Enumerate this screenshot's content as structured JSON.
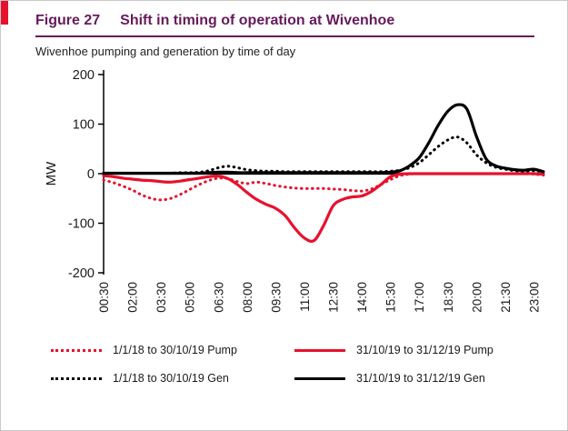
{
  "page": {
    "figure_label": "Figure 27",
    "title": "Shift in timing of operation at Wivenhoe",
    "subtitle": "Wivenhoe pumping and generation by time of day"
  },
  "colors": {
    "accent_purple": "#671a5c",
    "series_red": "#e8112d",
    "series_black": "#000000"
  },
  "chart_data": {
    "type": "line",
    "title": "Wivenhoe pumping and generation by time of day",
    "xlabel": "",
    "ylabel": "MW",
    "ylim": [
      -200,
      200
    ],
    "yticks": [
      -200,
      -100,
      0,
      100,
      200
    ],
    "grid": false,
    "legend_position": "bottom",
    "x": [
      "00:30",
      "01:00",
      "01:30",
      "02:00",
      "02:30",
      "03:00",
      "03:30",
      "04:00",
      "04:30",
      "05:00",
      "05:30",
      "06:00",
      "06:30",
      "07:00",
      "07:30",
      "08:00",
      "08:30",
      "09:00",
      "09:30",
      "10:00",
      "10:30",
      "11:00",
      "11:30",
      "12:00",
      "12:30",
      "13:00",
      "13:30",
      "14:00",
      "14:30",
      "15:00",
      "15:30",
      "16:00",
      "16:30",
      "17:00",
      "17:30",
      "18:00",
      "18:30",
      "19:00",
      "19:30",
      "20:00",
      "20:30",
      "21:00",
      "21:30",
      "22:00",
      "22:30",
      "23:00",
      "23:30"
    ],
    "xtick_labels": [
      "00:30",
      "02:00",
      "03:30",
      "05:00",
      "06:30",
      "08:00",
      "09:30",
      "11:00",
      "12:30",
      "14:00",
      "15:30",
      "17:00",
      "18:30",
      "20:00",
      "21:30",
      "23:00"
    ],
    "series": [
      {
        "name": "1/1/18 to 30/10/19 Pump",
        "color": "#e8112d",
        "style": "dotted",
        "values": [
          -13,
          -18,
          -25,
          -33,
          -43,
          -50,
          -53,
          -50,
          -42,
          -32,
          -22,
          -14,
          -9,
          -10,
          -16,
          -20,
          -17,
          -20,
          -24,
          -27,
          -29,
          -30,
          -30,
          -30,
          -31,
          -32,
          -34,
          -35,
          -31,
          -22,
          -12,
          -4,
          -1,
          0,
          0,
          0,
          0,
          0,
          0,
          0,
          0,
          0,
          0,
          0,
          0,
          -1,
          -3
        ]
      },
      {
        "name": "31/10/19 to 31/12/19 Pump",
        "color": "#e8112d",
        "style": "solid",
        "values": [
          -4,
          -6,
          -9,
          -11,
          -13,
          -14,
          -16,
          -17,
          -15,
          -12,
          -9,
          -6,
          -5,
          -10,
          -22,
          -38,
          -52,
          -62,
          -70,
          -85,
          -110,
          -130,
          -135,
          -105,
          -65,
          -52,
          -47,
          -45,
          -36,
          -22,
          -6,
          -1,
          0,
          0,
          0,
          0,
          0,
          0,
          0,
          0,
          0,
          0,
          0,
          0,
          0,
          0,
          -1
        ]
      },
      {
        "name": "1/1/18 to 30/10/19 Gen",
        "color": "#000000",
        "style": "dotted",
        "values": [
          1,
          1,
          1,
          1,
          1,
          1,
          1,
          1,
          2,
          2,
          3,
          6,
          12,
          15,
          12,
          8,
          6,
          5,
          5,
          4,
          4,
          4,
          4,
          4,
          4,
          4,
          4,
          4,
          4,
          4,
          5,
          7,
          12,
          22,
          38,
          55,
          68,
          74,
          62,
          38,
          22,
          13,
          9,
          6,
          5,
          6,
          4
        ]
      },
      {
        "name": "31/10/19 to 31/12/19 Gen",
        "color": "#000000",
        "style": "solid",
        "values": [
          1,
          1,
          1,
          1,
          1,
          1,
          1,
          1,
          1,
          1,
          1,
          2,
          3,
          3,
          2,
          2,
          2,
          2,
          2,
          2,
          2,
          2,
          2,
          2,
          2,
          2,
          2,
          2,
          2,
          2,
          3,
          6,
          16,
          32,
          62,
          98,
          126,
          139,
          130,
          75,
          30,
          16,
          11,
          8,
          7,
          9,
          4
        ]
      }
    ]
  }
}
